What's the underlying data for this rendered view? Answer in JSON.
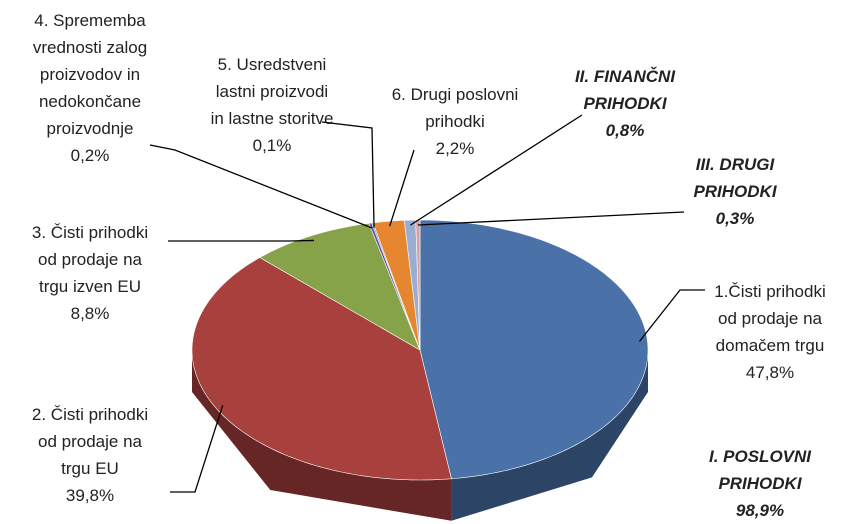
{
  "chart_data": {
    "type": "pie3d",
    "categories": [
      "1.Čisti prihodki\nod prodaje na\ndomačem trgu",
      "2. Čisti prihodki\nod prodaje na\ntrgu EU",
      "3. Čisti prihodki\nod prodaje na\ntrgu izven EU",
      "4. Sprememba\nvrednosti zalog\nproizvodov in\nnedokončane\nproizvodnje",
      "5. Usredstveni\nlastni proizvodi\nin lastne storitve",
      "6. Drugi poslovni\nprihodki",
      "II. FINANČNI\nPRIHODKI",
      "III. DRUGI\nPRIHODKI"
    ],
    "values": [
      47.8,
      39.8,
      8.8,
      0.2,
      0.1,
      2.2,
      0.8,
      0.3
    ],
    "value_labels": [
      "47,8%",
      "39,8%",
      "8,8%",
      "0,2%",
      "0,1%",
      "2,2%",
      "0,8%",
      "0,3%"
    ],
    "colors": [
      "#4a72a8",
      "#a8403d",
      "#86a34a",
      "#6f4f95",
      "#3fa3bf",
      "#e6862e",
      "#9aaed4",
      "#d9a0a0"
    ],
    "annotations": [
      {
        "text": "I. POSLOVNI\nPRIHODKI",
        "value": 98.9,
        "value_label": "98,9%"
      }
    ]
  }
}
